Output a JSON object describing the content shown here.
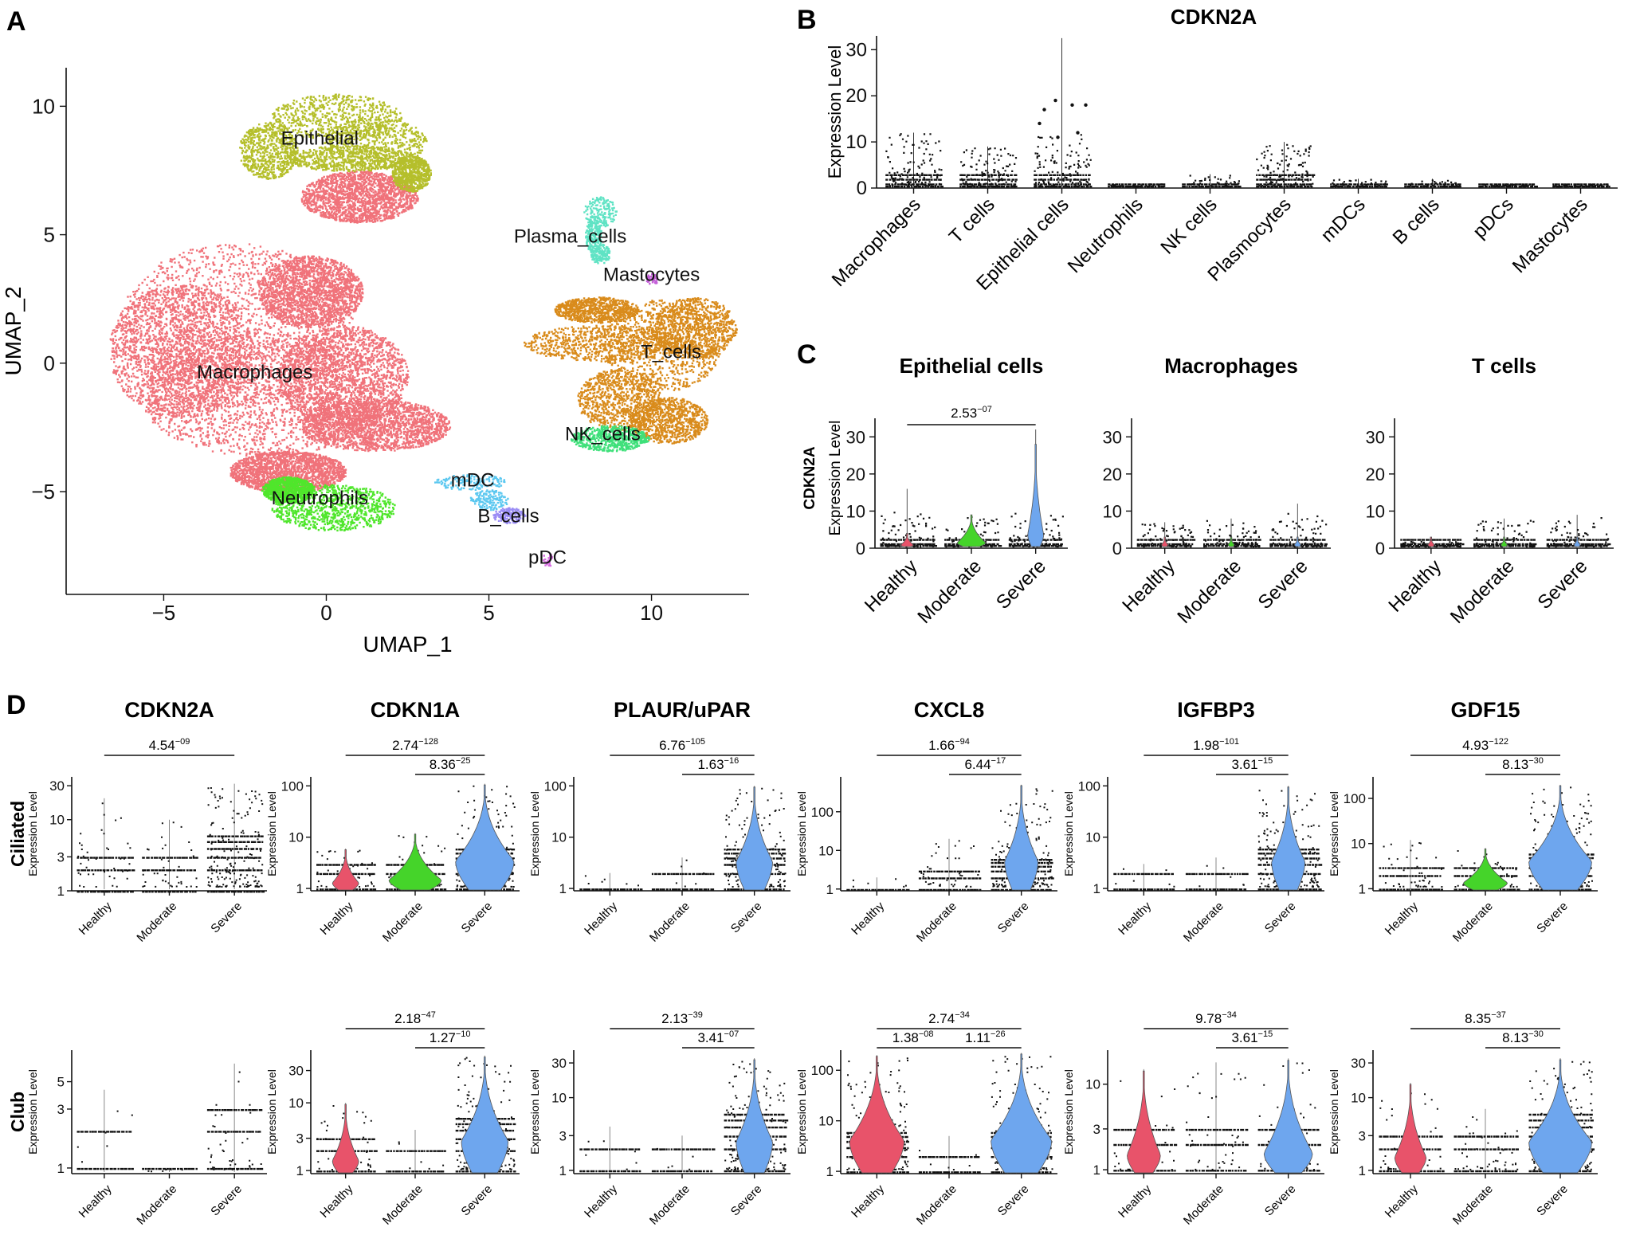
{
  "panels": {
    "A": {
      "letter": "A",
      "chart_data": {
        "type": "scatter",
        "xlabel": "UMAP_1",
        "ylabel": "UMAP_2",
        "xlim": [
          -8,
          13
        ],
        "ylim": [
          -9,
          11.5
        ],
        "xticks": [
          -5,
          0,
          5,
          10
        ],
        "yticks": [
          -5,
          0,
          5,
          10
        ],
        "xtick_labels": [
          "−5",
          "0",
          "5",
          "10"
        ],
        "ytick_labels": [
          "−5",
          "0",
          "5",
          "10"
        ],
        "clusters": [
          {
            "label": "Macrophages",
            "color": "#F0727A",
            "center": [
              -2.5,
              0
            ],
            "label_pos": [
              -2.2,
              -0.6
            ]
          },
          {
            "label": "Epithelial",
            "color": "#B5BF2B",
            "center": [
              1,
              8.7
            ],
            "label_pos": [
              -0.2,
              8.5
            ]
          },
          {
            "label": "Plasma_cells",
            "color": "#5FE3C4",
            "center": [
              8.3,
              5.3
            ],
            "label_pos": [
              7.5,
              4.7
            ]
          },
          {
            "label": "Mastocytes",
            "color": "#C45FD8",
            "center": [
              10,
              3.2
            ],
            "label_pos": [
              10,
              3.2
            ]
          },
          {
            "label": "T_cells",
            "color": "#D98B1B",
            "center": [
              10,
              0.5
            ],
            "label_pos": [
              10.6,
              0.2
            ]
          },
          {
            "label": "NK_cells",
            "color": "#3EE07A",
            "center": [
              8.5,
              -3
            ],
            "label_pos": [
              8.5,
              -3
            ]
          },
          {
            "label": "Neutrophils",
            "color": "#4FE62B",
            "center": [
              0,
              -5.8
            ],
            "label_pos": [
              -0.2,
              -5.5
            ]
          },
          {
            "label": "mDC",
            "color": "#5CC8F0",
            "center": [
              4.5,
              -4.8
            ],
            "label_pos": [
              4.5,
              -4.8
            ]
          },
          {
            "label": "B_cells",
            "color": "#9A8CF5",
            "center": [
              5.5,
              -6.2
            ],
            "label_pos": [
              5.6,
              -6.2
            ]
          },
          {
            "label": "pDC",
            "color": "#D66BE0",
            "center": [
              6.8,
              -7.8
            ],
            "label_pos": [
              6.8,
              -7.8
            ]
          }
        ]
      }
    },
    "B": {
      "letter": "B",
      "chart_data": {
        "type": "violin",
        "title": "CDKN2A",
        "ylabel": "Expression Level",
        "ylim": [
          0,
          33
        ],
        "yticks": [
          0,
          10,
          20,
          30
        ],
        "ytick_labels": [
          "0",
          "10",
          "20",
          "30"
        ],
        "categories": [
          "Macrophages",
          "T cells",
          "Epithelial cells",
          "Neutrophils",
          "NK cells",
          "Plasmocytes",
          "mDCs",
          "B cells",
          "pDCs",
          "Mastocytes"
        ],
        "max_values": [
          12,
          9,
          32.5,
          1,
          3,
          10,
          2,
          2,
          1,
          1
        ]
      }
    },
    "C": {
      "letter": "C",
      "ylabel_gene": "CDKN2A",
      "ylabel": "Expression Level",
      "chart_data": [
        {
          "type": "violin",
          "title": "Epithelial cells",
          "ylim": [
            0,
            35
          ],
          "yticks": [
            0,
            10,
            20,
            30
          ],
          "ytick_labels": [
            "0",
            "10",
            "20",
            "30"
          ],
          "categories": [
            "Healthy",
            "Moderate",
            "Severe"
          ],
          "max_values": [
            16,
            9,
            32
          ],
          "comparisons": [
            {
              "from": 0,
              "to": 2,
              "p": "2.53",
              "exp": "−07"
            }
          ]
        },
        {
          "type": "violin",
          "title": "Macrophages",
          "ylim": [
            0,
            35
          ],
          "yticks": [
            0,
            10,
            20,
            30
          ],
          "ytick_labels": [
            "0",
            "10",
            "20",
            "30"
          ],
          "categories": [
            "Healthy",
            "Moderate",
            "Severe"
          ],
          "max_values": [
            7,
            8,
            12
          ],
          "comparisons": []
        },
        {
          "type": "violin",
          "title": "T cells",
          "ylim": [
            0,
            35
          ],
          "yticks": [
            0,
            10,
            20,
            30
          ],
          "ytick_labels": [
            "0",
            "10",
            "20",
            "30"
          ],
          "categories": [
            "Healthy",
            "Moderate",
            "Severe"
          ],
          "max_values": [
            2,
            8,
            9
          ],
          "comparisons": []
        }
      ]
    },
    "D": {
      "letter": "D",
      "row_labels": [
        "Ciliated",
        "Club"
      ],
      "ylabel": "Expression Level",
      "categories": [
        "Healthy",
        "Moderate",
        "Severe"
      ],
      "genes": [
        "CDKN2A",
        "CDKN1A",
        "PLAUR/uPAR",
        "CXCL8",
        "IGFBP3",
        "GDF15"
      ],
      "chart_data": [
        {
          "type": "violin",
          "row": "Ciliated",
          "gene": "CDKN2A",
          "scale": "log",
          "ylim": [
            1,
            40
          ],
          "yticks": [
            1,
            3,
            10,
            30
          ],
          "ytick_labels": [
            "1",
            "3",
            "10",
            "30"
          ],
          "max_values": [
            20,
            10,
            32
          ],
          "widths": [
            0,
            0,
            0
          ],
          "comparisons": [
            {
              "from": 0,
              "to": 2,
              "p": "4.54",
              "exp": "−09"
            }
          ]
        },
        {
          "type": "violin",
          "row": "Ciliated",
          "gene": "CDKN1A",
          "scale": "log",
          "ylim": [
            0.9,
            150
          ],
          "yticks": [
            1,
            10,
            100
          ],
          "ytick_labels": [
            "1",
            "10",
            "100"
          ],
          "max_values": [
            6,
            12,
            110
          ],
          "widths": [
            0.45,
            0.9,
            1
          ],
          "comparisons": [
            {
              "from": 0,
              "to": 2,
              "p": "2.74",
              "exp": "−128"
            },
            {
              "from": 1,
              "to": 2,
              "p": "8.36",
              "exp": "−25"
            }
          ]
        },
        {
          "type": "violin",
          "row": "Ciliated",
          "gene": "PLAUR/uPAR",
          "scale": "log",
          "ylim": [
            0.9,
            150
          ],
          "yticks": [
            1,
            10,
            100
          ],
          "ytick_labels": [
            "1",
            "10",
            "100"
          ],
          "max_values": [
            2,
            4,
            100
          ],
          "widths": [
            0,
            0,
            0.6
          ],
          "comparisons": [
            {
              "from": 0,
              "to": 2,
              "p": "6.76",
              "exp": "−105"
            },
            {
              "from": 1,
              "to": 2,
              "p": "1.63",
              "exp": "−16"
            }
          ]
        },
        {
          "type": "violin",
          "row": "Ciliated",
          "gene": "CXCL8",
          "scale": "log",
          "ylim": [
            0.9,
            800
          ],
          "yticks": [
            1,
            10,
            100
          ],
          "ytick_labels": [
            "1",
            "10",
            "100"
          ],
          "max_values": [
            2,
            20,
            500
          ],
          "widths": [
            0,
            0,
            0.55
          ],
          "comparisons": [
            {
              "from": 0,
              "to": 2,
              "p": "1.66",
              "exp": "−94"
            },
            {
              "from": 1,
              "to": 2,
              "p": "6.44",
              "exp": "−17"
            }
          ]
        },
        {
          "type": "violin",
          "row": "Ciliated",
          "gene": "IGFBP3",
          "scale": "log",
          "ylim": [
            0.9,
            150
          ],
          "yticks": [
            1,
            10,
            100
          ],
          "ytick_labels": [
            "1",
            "10",
            "100"
          ],
          "max_values": [
            3,
            4,
            100
          ],
          "widths": [
            0,
            0,
            0.55
          ],
          "comparisons": [
            {
              "from": 0,
              "to": 2,
              "p": "1.98",
              "exp": "−101"
            },
            {
              "from": 1,
              "to": 2,
              "p": "3.61",
              "exp": "−15"
            }
          ]
        },
        {
          "type": "violin",
          "row": "Ciliated",
          "gene": "GDF15",
          "scale": "log",
          "ylim": [
            0.9,
            300
          ],
          "yticks": [
            1,
            10,
            100
          ],
          "ytick_labels": [
            "1",
            "10",
            "100"
          ],
          "max_values": [
            12,
            8,
            200
          ],
          "widths": [
            0,
            0.7,
            1
          ],
          "comparisons": [
            {
              "from": 0,
              "to": 2,
              "p": "4.93",
              "exp": "−122"
            },
            {
              "from": 1,
              "to": 2,
              "p": "8.13",
              "exp": "−30"
            }
          ]
        },
        {
          "type": "violin",
          "row": "Club",
          "gene": "CDKN2A",
          "scale": "log",
          "ylim": [
            0.9,
            9
          ],
          "yticks": [
            1,
            3,
            5
          ],
          "ytick_labels": [
            "1",
            "3",
            "5"
          ],
          "max_values": [
            4.3,
            1,
            7
          ],
          "widths": [
            0,
            0,
            0
          ],
          "comparisons": []
        },
        {
          "type": "violin",
          "row": "Club",
          "gene": "CDKN1A",
          "scale": "log",
          "ylim": [
            0.9,
            60
          ],
          "yticks": [
            1,
            3,
            10,
            30
          ],
          "ytick_labels": [
            "1",
            "3",
            "10",
            "30"
          ],
          "max_values": [
            10,
            4,
            50
          ],
          "widths": [
            0.45,
            0,
            0.8
          ],
          "comparisons": [
            {
              "from": 0,
              "to": 2,
              "p": "2.18",
              "exp": "−47"
            },
            {
              "from": 1,
              "to": 2,
              "p": "1.27",
              "exp": "−10"
            }
          ]
        },
        {
          "type": "violin",
          "row": "Club",
          "gene": "PLAUR/uPAR",
          "scale": "log",
          "ylim": [
            0.9,
            45
          ],
          "yticks": [
            1,
            3,
            10,
            30
          ],
          "ytick_labels": [
            "1",
            "3",
            "10",
            "30"
          ],
          "max_values": [
            4,
            3,
            35
          ],
          "widths": [
            0,
            0,
            0.6
          ],
          "comparisons": [
            {
              "from": 0,
              "to": 2,
              "p": "2.13",
              "exp": "−39"
            },
            {
              "from": 1,
              "to": 2,
              "p": "3.41",
              "exp": "−07"
            }
          ]
        },
        {
          "type": "violin",
          "row": "Club",
          "gene": "CXCL8",
          "scale": "log",
          "ylim": [
            0.9,
            250
          ],
          "yticks": [
            1,
            10,
            100
          ],
          "ytick_labels": [
            "1",
            "10",
            "100"
          ],
          "max_values": [
            200,
            5,
            220
          ],
          "widths": [
            0.9,
            0,
            1
          ],
          "comparisons": [
            {
              "from": 0,
              "to": 2,
              "p": "2.74",
              "exp": "−34"
            },
            {
              "from": 0,
              "to": 1,
              "p": "1.38",
              "exp": "−08"
            },
            {
              "from": 1,
              "to": 2,
              "p": "1.11",
              "exp": "−26"
            }
          ]
        },
        {
          "type": "violin",
          "row": "Club",
          "gene": "IGFBP3",
          "scale": "log",
          "ylim": [
            0.9,
            25
          ],
          "yticks": [
            1,
            3,
            10
          ],
          "ytick_labels": [
            "1",
            "3",
            "10"
          ],
          "max_values": [
            15,
            18,
            20
          ],
          "widths": [
            0.55,
            0,
            0.8
          ],
          "comparisons": [
            {
              "from": 0,
              "to": 2,
              "p": "9.78",
              "exp": "−34"
            },
            {
              "from": 1,
              "to": 2,
              "p": "3.61",
              "exp": "−15"
            }
          ]
        },
        {
          "type": "violin",
          "row": "Club",
          "gene": "GDF15",
          "scale": "log",
          "ylim": [
            0.9,
            45
          ],
          "yticks": [
            1,
            3,
            10,
            30
          ],
          "ytick_labels": [
            "1",
            "3",
            "10",
            "30"
          ],
          "max_values": [
            16,
            7,
            35
          ],
          "widths": [
            0.5,
            0,
            1
          ],
          "comparisons": [
            {
              "from": 0,
              "to": 2,
              "p": "8.35",
              "exp": "−37"
            },
            {
              "from": 1,
              "to": 2,
              "p": "8.13",
              "exp": "−30"
            }
          ]
        }
      ]
    }
  },
  "colors": {
    "healthy": "#E8536A",
    "moderate": "#45D42A",
    "severe": "#6EA6EE",
    "neutral": "#9A9A9A",
    "points": "#111111"
  }
}
